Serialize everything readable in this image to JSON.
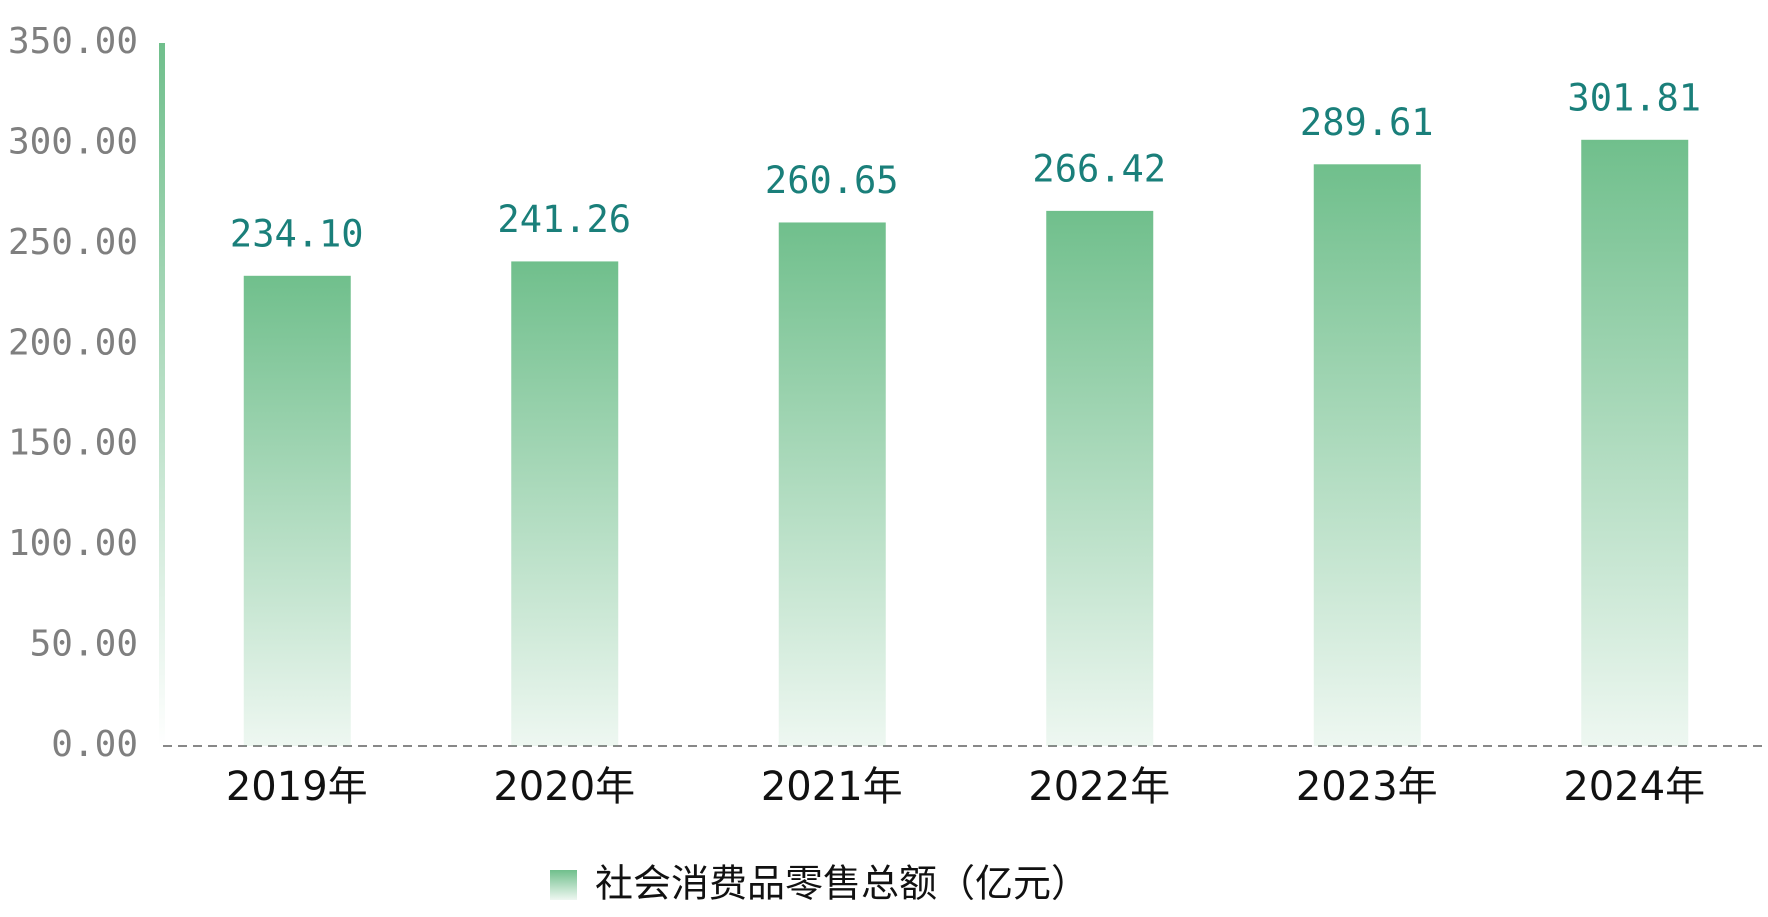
{
  "chart_data": {
    "type": "bar",
    "categories": [
      "2019年",
      "2020年",
      "2021年",
      "2022年",
      "2023年",
      "2024年"
    ],
    "series": [
      {
        "name": "社会消费品零售总额（亿元）",
        "color": "#70bf8c",
        "values": [
          234.1,
          241.26,
          260.65,
          266.42,
          289.61,
          301.81
        ],
        "value_labels": [
          "234.10",
          "241.26",
          "260.65",
          "266.42",
          "289.61",
          "301.81"
        ]
      }
    ],
    "ylim": [
      0,
      350
    ],
    "yticks": [
      {
        "value": 0,
        "label": "0.00"
      },
      {
        "value": 50,
        "label": "50.00"
      },
      {
        "value": 100,
        "label": "100.00"
      },
      {
        "value": 150,
        "label": "150.00"
      },
      {
        "value": 200,
        "label": "200.00"
      },
      {
        "value": 250,
        "label": "250.00"
      },
      {
        "value": 300,
        "label": "300.00"
      },
      {
        "value": 350,
        "label": "350.00"
      }
    ],
    "grid": false
  }
}
